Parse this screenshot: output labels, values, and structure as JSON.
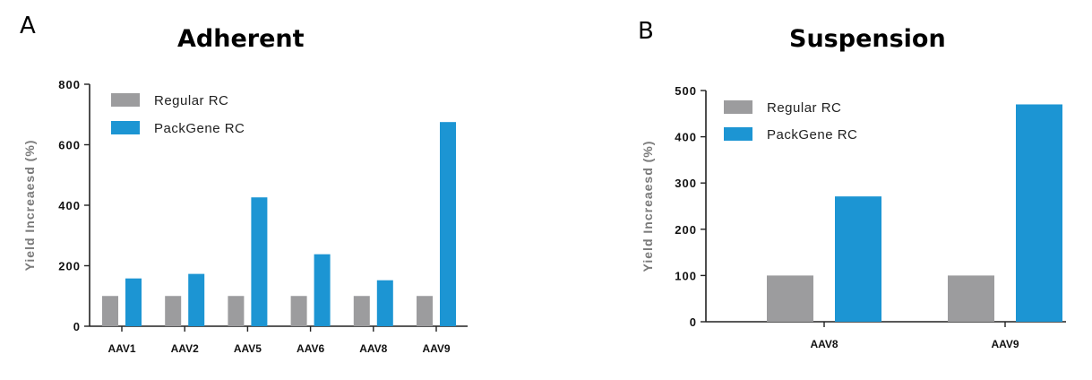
{
  "panels": [
    {
      "letter": "A",
      "title": "Adherent"
    },
    {
      "letter": "B",
      "title": "Suspension"
    }
  ],
  "chart_data": [
    {
      "type": "bar",
      "title": "Adherent",
      "ylabel": "Yield Increaesd (%)",
      "xlabel": "",
      "categories": [
        "AAV1",
        "AAV2",
        "AAV5",
        "AAV6",
        "AAV8",
        "AAV9"
      ],
      "series": [
        {
          "name": "Regular RC",
          "color": "#9c9c9e",
          "values": [
            100,
            100,
            100,
            100,
            100,
            100
          ]
        },
        {
          "name": "PackGene RC",
          "color": "#1c95d3",
          "values": [
            158,
            173,
            426,
            238,
            152,
            675
          ]
        }
      ],
      "ylim": [
        0,
        800
      ],
      "yticks": [
        "0",
        "200",
        "400",
        "600",
        "800"
      ],
      "legend_position": "top-left",
      "grid": false
    },
    {
      "type": "bar",
      "title": "Suspension",
      "ylabel": "Yield Increaesd (%)",
      "xlabel": "",
      "categories": [
        "AAV8",
        "AAV9"
      ],
      "series": [
        {
          "name": "Regular RC",
          "color": "#9c9c9e",
          "values": [
            100,
            100
          ]
        },
        {
          "name": "PackGene RC",
          "color": "#1c95d3",
          "values": [
            271,
            470
          ]
        }
      ],
      "ylim": [
        0,
        500
      ],
      "yticks": [
        "0",
        "100",
        "200",
        "300",
        "400",
        "500"
      ],
      "legend_position": "top-left",
      "grid": false
    }
  ]
}
